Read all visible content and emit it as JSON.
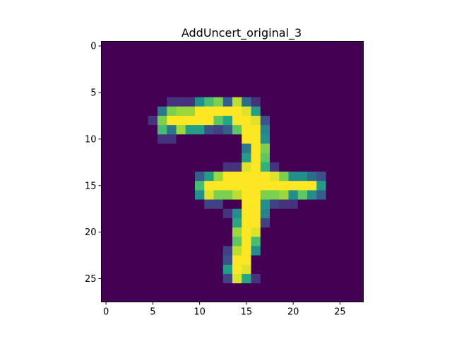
{
  "chart_data": {
    "type": "heatmap",
    "title": "AddUncert_original_3",
    "colormap": "viridis",
    "value_range": [
      0,
      1
    ],
    "x_ticks": [
      0,
      5,
      10,
      15,
      20,
      25
    ],
    "y_ticks": [
      0,
      5,
      10,
      15,
      20,
      25
    ],
    "x_range": [
      -0.5,
      27.5
    ],
    "y_range": [
      27.5,
      -0.5
    ],
    "rows": 28,
    "cols": 28,
    "cells": [
      {
        "r": 6,
        "c": 7,
        "v": 0.15
      },
      {
        "r": 6,
        "c": 8,
        "v": 0.15
      },
      {
        "r": 6,
        "c": 9,
        "v": 0.15
      },
      {
        "r": 6,
        "c": 10,
        "v": 0.5
      },
      {
        "r": 6,
        "c": 11,
        "v": 0.7
      },
      {
        "r": 6,
        "c": 12,
        "v": 0.8
      },
      {
        "r": 6,
        "c": 13,
        "v": 0.3
      },
      {
        "r": 6,
        "c": 14,
        "v": 0.9
      },
      {
        "r": 6,
        "c": 15,
        "v": 0.35
      },
      {
        "r": 6,
        "c": 16,
        "v": 0.15
      },
      {
        "r": 7,
        "c": 6,
        "v": 0.4
      },
      {
        "r": 7,
        "c": 7,
        "v": 0.8
      },
      {
        "r": 7,
        "c": 8,
        "v": 0.85
      },
      {
        "r": 7,
        "c": 9,
        "v": 0.85
      },
      {
        "r": 7,
        "c": 10,
        "v": 1.0
      },
      {
        "r": 7,
        "c": 11,
        "v": 1.0
      },
      {
        "r": 7,
        "c": 12,
        "v": 1.0
      },
      {
        "r": 7,
        "c": 13,
        "v": 1.0
      },
      {
        "r": 7,
        "c": 14,
        "v": 1.0
      },
      {
        "r": 7,
        "c": 15,
        "v": 0.95
      },
      {
        "r": 7,
        "c": 16,
        "v": 0.55
      },
      {
        "r": 8,
        "c": 5,
        "v": 0.15
      },
      {
        "r": 8,
        "c": 6,
        "v": 0.8
      },
      {
        "r": 8,
        "c": 7,
        "v": 1.0
      },
      {
        "r": 8,
        "c": 8,
        "v": 1.0
      },
      {
        "r": 8,
        "c": 9,
        "v": 1.0
      },
      {
        "r": 8,
        "c": 10,
        "v": 1.0
      },
      {
        "r": 8,
        "c": 11,
        "v": 1.0
      },
      {
        "r": 8,
        "c": 12,
        "v": 0.75
      },
      {
        "r": 8,
        "c": 13,
        "v": 0.6
      },
      {
        "r": 8,
        "c": 14,
        "v": 1.0
      },
      {
        "r": 8,
        "c": 15,
        "v": 1.0
      },
      {
        "r": 8,
        "c": 16,
        "v": 0.95
      },
      {
        "r": 8,
        "c": 17,
        "v": 0.25
      },
      {
        "r": 9,
        "c": 6,
        "v": 0.7
      },
      {
        "r": 9,
        "c": 7,
        "v": 0.4
      },
      {
        "r": 9,
        "c": 8,
        "v": 0.85
      },
      {
        "r": 9,
        "c": 9,
        "v": 0.55
      },
      {
        "r": 9,
        "c": 10,
        "v": 0.55
      },
      {
        "r": 9,
        "c": 11,
        "v": 0.25
      },
      {
        "r": 9,
        "c": 12,
        "v": 0.2
      },
      {
        "r": 9,
        "c": 13,
        "v": 0.3
      },
      {
        "r": 9,
        "c": 14,
        "v": 0.75
      },
      {
        "r": 9,
        "c": 15,
        "v": 1.0
      },
      {
        "r": 9,
        "c": 16,
        "v": 1.0
      },
      {
        "r": 9,
        "c": 17,
        "v": 0.45
      },
      {
        "r": 10,
        "c": 6,
        "v": 0.15
      },
      {
        "r": 10,
        "c": 7,
        "v": 0.15
      },
      {
        "r": 10,
        "c": 15,
        "v": 1.0
      },
      {
        "r": 10,
        "c": 16,
        "v": 1.0
      },
      {
        "r": 10,
        "c": 17,
        "v": 0.5
      },
      {
        "r": 11,
        "c": 15,
        "v": 0.4
      },
      {
        "r": 11,
        "c": 16,
        "v": 1.0
      },
      {
        "r": 11,
        "c": 17,
        "v": 0.8
      },
      {
        "r": 12,
        "c": 15,
        "v": 0.55
      },
      {
        "r": 12,
        "c": 16,
        "v": 1.0
      },
      {
        "r": 12,
        "c": 17,
        "v": 0.75
      },
      {
        "r": 13,
        "c": 13,
        "v": 0.15
      },
      {
        "r": 13,
        "c": 14,
        "v": 0.15
      },
      {
        "r": 13,
        "c": 15,
        "v": 0.95
      },
      {
        "r": 13,
        "c": 16,
        "v": 1.0
      },
      {
        "r": 13,
        "c": 17,
        "v": 0.65
      },
      {
        "r": 13,
        "c": 18,
        "v": 0.15
      },
      {
        "r": 14,
        "c": 10,
        "v": 0.3
      },
      {
        "r": 14,
        "c": 11,
        "v": 0.55
      },
      {
        "r": 14,
        "c": 12,
        "v": 0.85
      },
      {
        "r": 14,
        "c": 13,
        "v": 1.0
      },
      {
        "r": 14,
        "c": 14,
        "v": 1.0
      },
      {
        "r": 14,
        "c": 15,
        "v": 1.0
      },
      {
        "r": 14,
        "c": 16,
        "v": 1.0
      },
      {
        "r": 14,
        "c": 17,
        "v": 1.0
      },
      {
        "r": 14,
        "c": 18,
        "v": 0.95
      },
      {
        "r": 14,
        "c": 19,
        "v": 0.8
      },
      {
        "r": 14,
        "c": 20,
        "v": 0.5
      },
      {
        "r": 14,
        "c": 21,
        "v": 0.5
      },
      {
        "r": 14,
        "c": 22,
        "v": 0.35
      },
      {
        "r": 14,
        "c": 23,
        "v": 0.25
      },
      {
        "r": 15,
        "c": 10,
        "v": 0.7
      },
      {
        "r": 15,
        "c": 11,
        "v": 1.0
      },
      {
        "r": 15,
        "c": 12,
        "v": 1.0
      },
      {
        "r": 15,
        "c": 13,
        "v": 1.0
      },
      {
        "r": 15,
        "c": 14,
        "v": 1.0
      },
      {
        "r": 15,
        "c": 15,
        "v": 1.0
      },
      {
        "r": 15,
        "c": 16,
        "v": 1.0
      },
      {
        "r": 15,
        "c": 17,
        "v": 1.0
      },
      {
        "r": 15,
        "c": 18,
        "v": 1.0
      },
      {
        "r": 15,
        "c": 19,
        "v": 1.0
      },
      {
        "r": 15,
        "c": 20,
        "v": 1.0
      },
      {
        "r": 15,
        "c": 21,
        "v": 1.0
      },
      {
        "r": 15,
        "c": 22,
        "v": 1.0
      },
      {
        "r": 15,
        "c": 23,
        "v": 0.55
      },
      {
        "r": 16,
        "c": 10,
        "v": 0.5
      },
      {
        "r": 16,
        "c": 11,
        "v": 0.95
      },
      {
        "r": 16,
        "c": 12,
        "v": 0.8
      },
      {
        "r": 16,
        "c": 13,
        "v": 0.8
      },
      {
        "r": 16,
        "c": 14,
        "v": 0.9
      },
      {
        "r": 16,
        "c": 15,
        "v": 1.0
      },
      {
        "r": 16,
        "c": 16,
        "v": 1.0
      },
      {
        "r": 16,
        "c": 17,
        "v": 0.8
      },
      {
        "r": 16,
        "c": 18,
        "v": 0.8
      },
      {
        "r": 16,
        "c": 19,
        "v": 0.85
      },
      {
        "r": 16,
        "c": 20,
        "v": 0.5
      },
      {
        "r": 16,
        "c": 21,
        "v": 0.75
      },
      {
        "r": 16,
        "c": 22,
        "v": 0.5
      },
      {
        "r": 16,
        "c": 23,
        "v": 0.3
      },
      {
        "r": 17,
        "c": 11,
        "v": 0.2
      },
      {
        "r": 17,
        "c": 12,
        "v": 0.2
      },
      {
        "r": 17,
        "c": 15,
        "v": 1.0
      },
      {
        "r": 17,
        "c": 16,
        "v": 1.0
      },
      {
        "r": 17,
        "c": 17,
        "v": 0.5
      },
      {
        "r": 17,
        "c": 18,
        "v": 0.2
      },
      {
        "r": 17,
        "c": 19,
        "v": 0.15
      },
      {
        "r": 17,
        "c": 20,
        "v": 0.15
      },
      {
        "r": 18,
        "c": 13,
        "v": 0.15
      },
      {
        "r": 18,
        "c": 14,
        "v": 0.5
      },
      {
        "r": 18,
        "c": 15,
        "v": 1.0
      },
      {
        "r": 18,
        "c": 16,
        "v": 1.0
      },
      {
        "r": 18,
        "c": 17,
        "v": 0.45
      },
      {
        "r": 19,
        "c": 14,
        "v": 0.6
      },
      {
        "r": 19,
        "c": 15,
        "v": 1.0
      },
      {
        "r": 19,
        "c": 16,
        "v": 1.0
      },
      {
        "r": 19,
        "c": 17,
        "v": 0.2
      },
      {
        "r": 20,
        "c": 14,
        "v": 0.85
      },
      {
        "r": 20,
        "c": 15,
        "v": 1.0
      },
      {
        "r": 20,
        "c": 16,
        "v": 0.95
      },
      {
        "r": 21,
        "c": 14,
        "v": 0.75
      },
      {
        "r": 21,
        "c": 15,
        "v": 1.0
      },
      {
        "r": 21,
        "c": 16,
        "v": 0.7
      },
      {
        "r": 22,
        "c": 13,
        "v": 0.2
      },
      {
        "r": 22,
        "c": 14,
        "v": 0.9
      },
      {
        "r": 22,
        "c": 15,
        "v": 1.0
      },
      {
        "r": 22,
        "c": 16,
        "v": 0.5
      },
      {
        "r": 23,
        "c": 13,
        "v": 0.25
      },
      {
        "r": 23,
        "c": 14,
        "v": 1.0
      },
      {
        "r": 23,
        "c": 15,
        "v": 1.0
      },
      {
        "r": 24,
        "c": 13,
        "v": 0.55
      },
      {
        "r": 24,
        "c": 14,
        "v": 1.0
      },
      {
        "r": 24,
        "c": 15,
        "v": 0.95
      },
      {
        "r": 25,
        "c": 13,
        "v": 0.2
      },
      {
        "r": 25,
        "c": 14,
        "v": 0.95
      },
      {
        "r": 25,
        "c": 15,
        "v": 0.6
      },
      {
        "r": 25,
        "c": 16,
        "v": 0.15
      }
    ]
  }
}
